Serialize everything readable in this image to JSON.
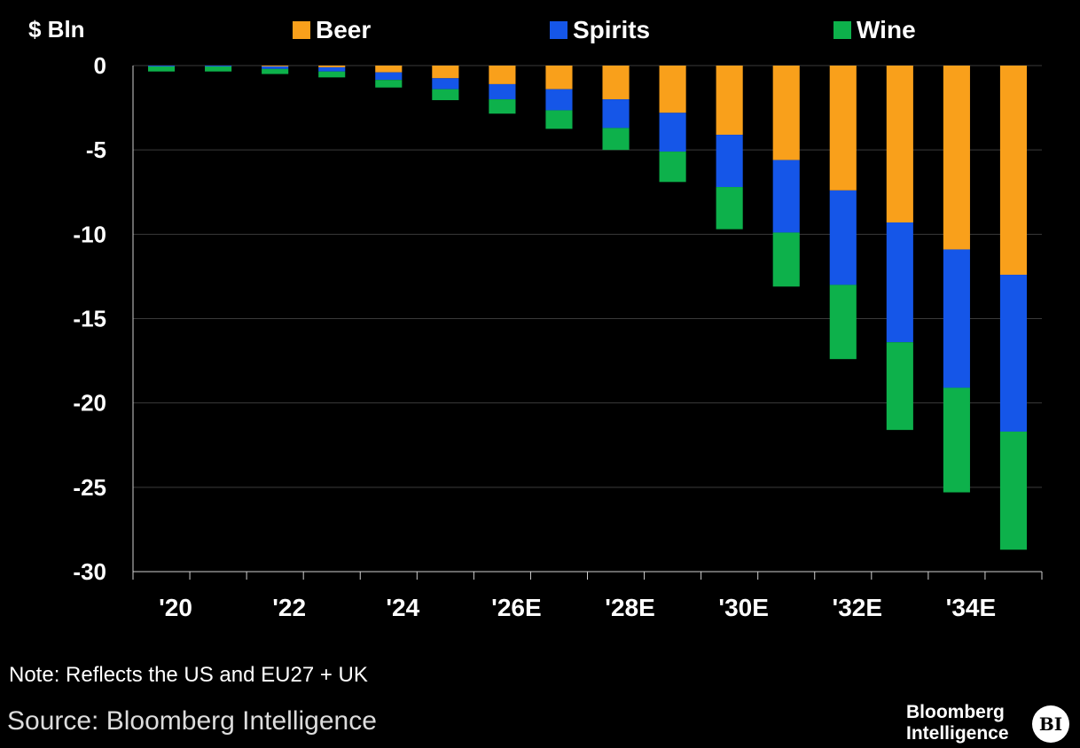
{
  "chart_data": {
    "type": "bar",
    "stacked": true,
    "ylabel": "$ Bln",
    "ylim": [
      -30,
      0
    ],
    "yticks": [
      0,
      -5,
      -10,
      -15,
      -20,
      -25,
      -30
    ],
    "xtick_labels": [
      "'20",
      "'22",
      "'24",
      "'26E",
      "'28E",
      "'30E",
      "'32E",
      "'34E"
    ],
    "categories": [
      "2020",
      "2021",
      "2022",
      "2023",
      "2024",
      "2025",
      "2026E",
      "2027E",
      "2028E",
      "2029E",
      "2030E",
      "2031E",
      "2032E",
      "2033E",
      "2034E",
      "2035E"
    ],
    "series": [
      {
        "name": "Beer",
        "color": "#f9a01b",
        "values": [
          0,
          0,
          -0.05,
          -0.1,
          -0.4,
          -0.75,
          -1.1,
          -1.4,
          -2.0,
          -2.8,
          -4.1,
          -5.6,
          -7.4,
          -9.3,
          -10.9,
          -12.4
        ]
      },
      {
        "name": "Spirits",
        "color": "#1556e8",
        "values": [
          -0.05,
          -0.05,
          -0.15,
          -0.25,
          -0.45,
          -0.65,
          -0.9,
          -1.25,
          -1.7,
          -2.3,
          -3.1,
          -4.3,
          -5.6,
          -7.1,
          -8.2,
          -9.3
        ]
      },
      {
        "name": "Wine",
        "color": "#0db14b",
        "values": [
          -0.3,
          -0.3,
          -0.3,
          -0.35,
          -0.45,
          -0.65,
          -0.85,
          -1.1,
          -1.3,
          -1.8,
          -2.5,
          -3.2,
          -4.4,
          -5.2,
          -6.2,
          -7.0
        ]
      }
    ],
    "grid": true,
    "legend": "top"
  },
  "note": "Note: Reflects the US and EU27 + UK",
  "source": "Source: Bloomberg Intelligence",
  "brand": {
    "line1": "Bloomberg",
    "line2": "Intelligence",
    "badge": "BI"
  }
}
